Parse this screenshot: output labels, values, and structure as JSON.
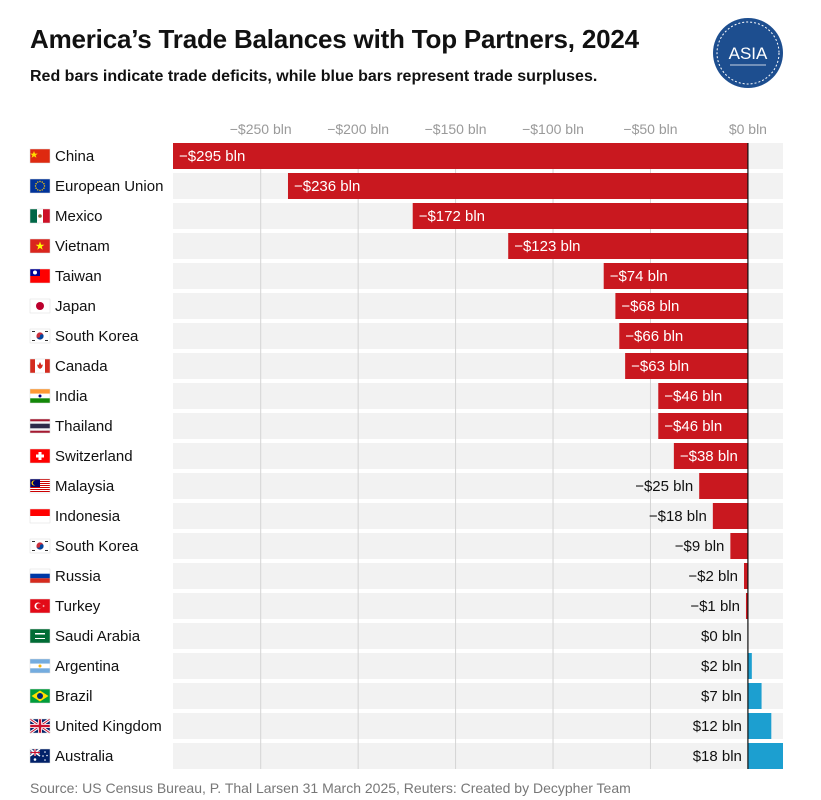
{
  "header": {
    "title": "America’s Trade Balances with Top Partners, 2024",
    "subtitle": "Red bars indicate trade deficits, while blue bars represent trade surpluses."
  },
  "logo": {
    "text": "ASIA"
  },
  "footer": {
    "source": "Source: US Census Bureau, P. Thal Larsen 31 March 2025, Reuters: Created by Decypher Team"
  },
  "colors": {
    "deficit": "#c9181f",
    "surplus": "#1c9fd0",
    "row_background": "#f2f2f2",
    "grid": "#d4d4d4",
    "logo": "#1d4e8f"
  },
  "chart_data": {
    "type": "bar",
    "orientation": "horizontal",
    "value_unit": "bln",
    "xlim": [
      -295,
      18
    ],
    "grid": true,
    "tick_labels": [
      "−$250 bln",
      "−$200 bln",
      "−$150 bln",
      "−$100 bln",
      "−$50 bln",
      "$0 bln"
    ],
    "tick_values": [
      -250,
      -200,
      -150,
      -100,
      -50,
      0
    ],
    "categories": [
      "China",
      "European Union",
      "Mexico",
      "Vietnam",
      "Taiwan",
      "Japan",
      "South Korea",
      "Canada",
      "India",
      "Thailand",
      "Switzerland",
      "Malaysia",
      "Indonesia",
      "South Korea",
      "Russia",
      "Turkey",
      "Saudi Arabia",
      "Argentina",
      "Brazil",
      "United Kingdom",
      "Australia"
    ],
    "flags": [
      "china-flag",
      "eu-flag",
      "mexico-flag",
      "vietnam-flag",
      "taiwan-flag",
      "japan-flag",
      "south-korea-flag",
      "canada-flag",
      "india-flag",
      "thailand-flag",
      "switzerland-flag",
      "malaysia-flag",
      "indonesia-flag",
      "south-korea-flag",
      "russia-flag",
      "turkey-flag",
      "saudi-arabia-flag",
      "argentina-flag",
      "brazil-flag",
      "united-kingdom-flag",
      "australia-flag"
    ],
    "values": [
      -295,
      -236,
      -172,
      -123,
      -74,
      -68,
      -66,
      -63,
      -46,
      -46,
      -38,
      -25,
      -18,
      -9,
      -2,
      -1,
      0,
      2,
      7,
      12,
      18
    ],
    "labels": [
      "−$295 bln",
      "−$236 bln",
      "−$172 bln",
      "−$123 bln",
      "−$74 bln",
      "−$68 bln",
      "−$66 bln",
      "−$63 bln",
      "−$46 bln",
      "−$46 bln",
      "−$38 bln",
      "−$25 bln",
      "−$18 bln",
      "−$9 bln",
      "−$2 bln",
      "−$1 bln",
      "$0 bln",
      "$2 bln",
      "$7 bln",
      "$12 bln",
      "$18 bln"
    ]
  }
}
